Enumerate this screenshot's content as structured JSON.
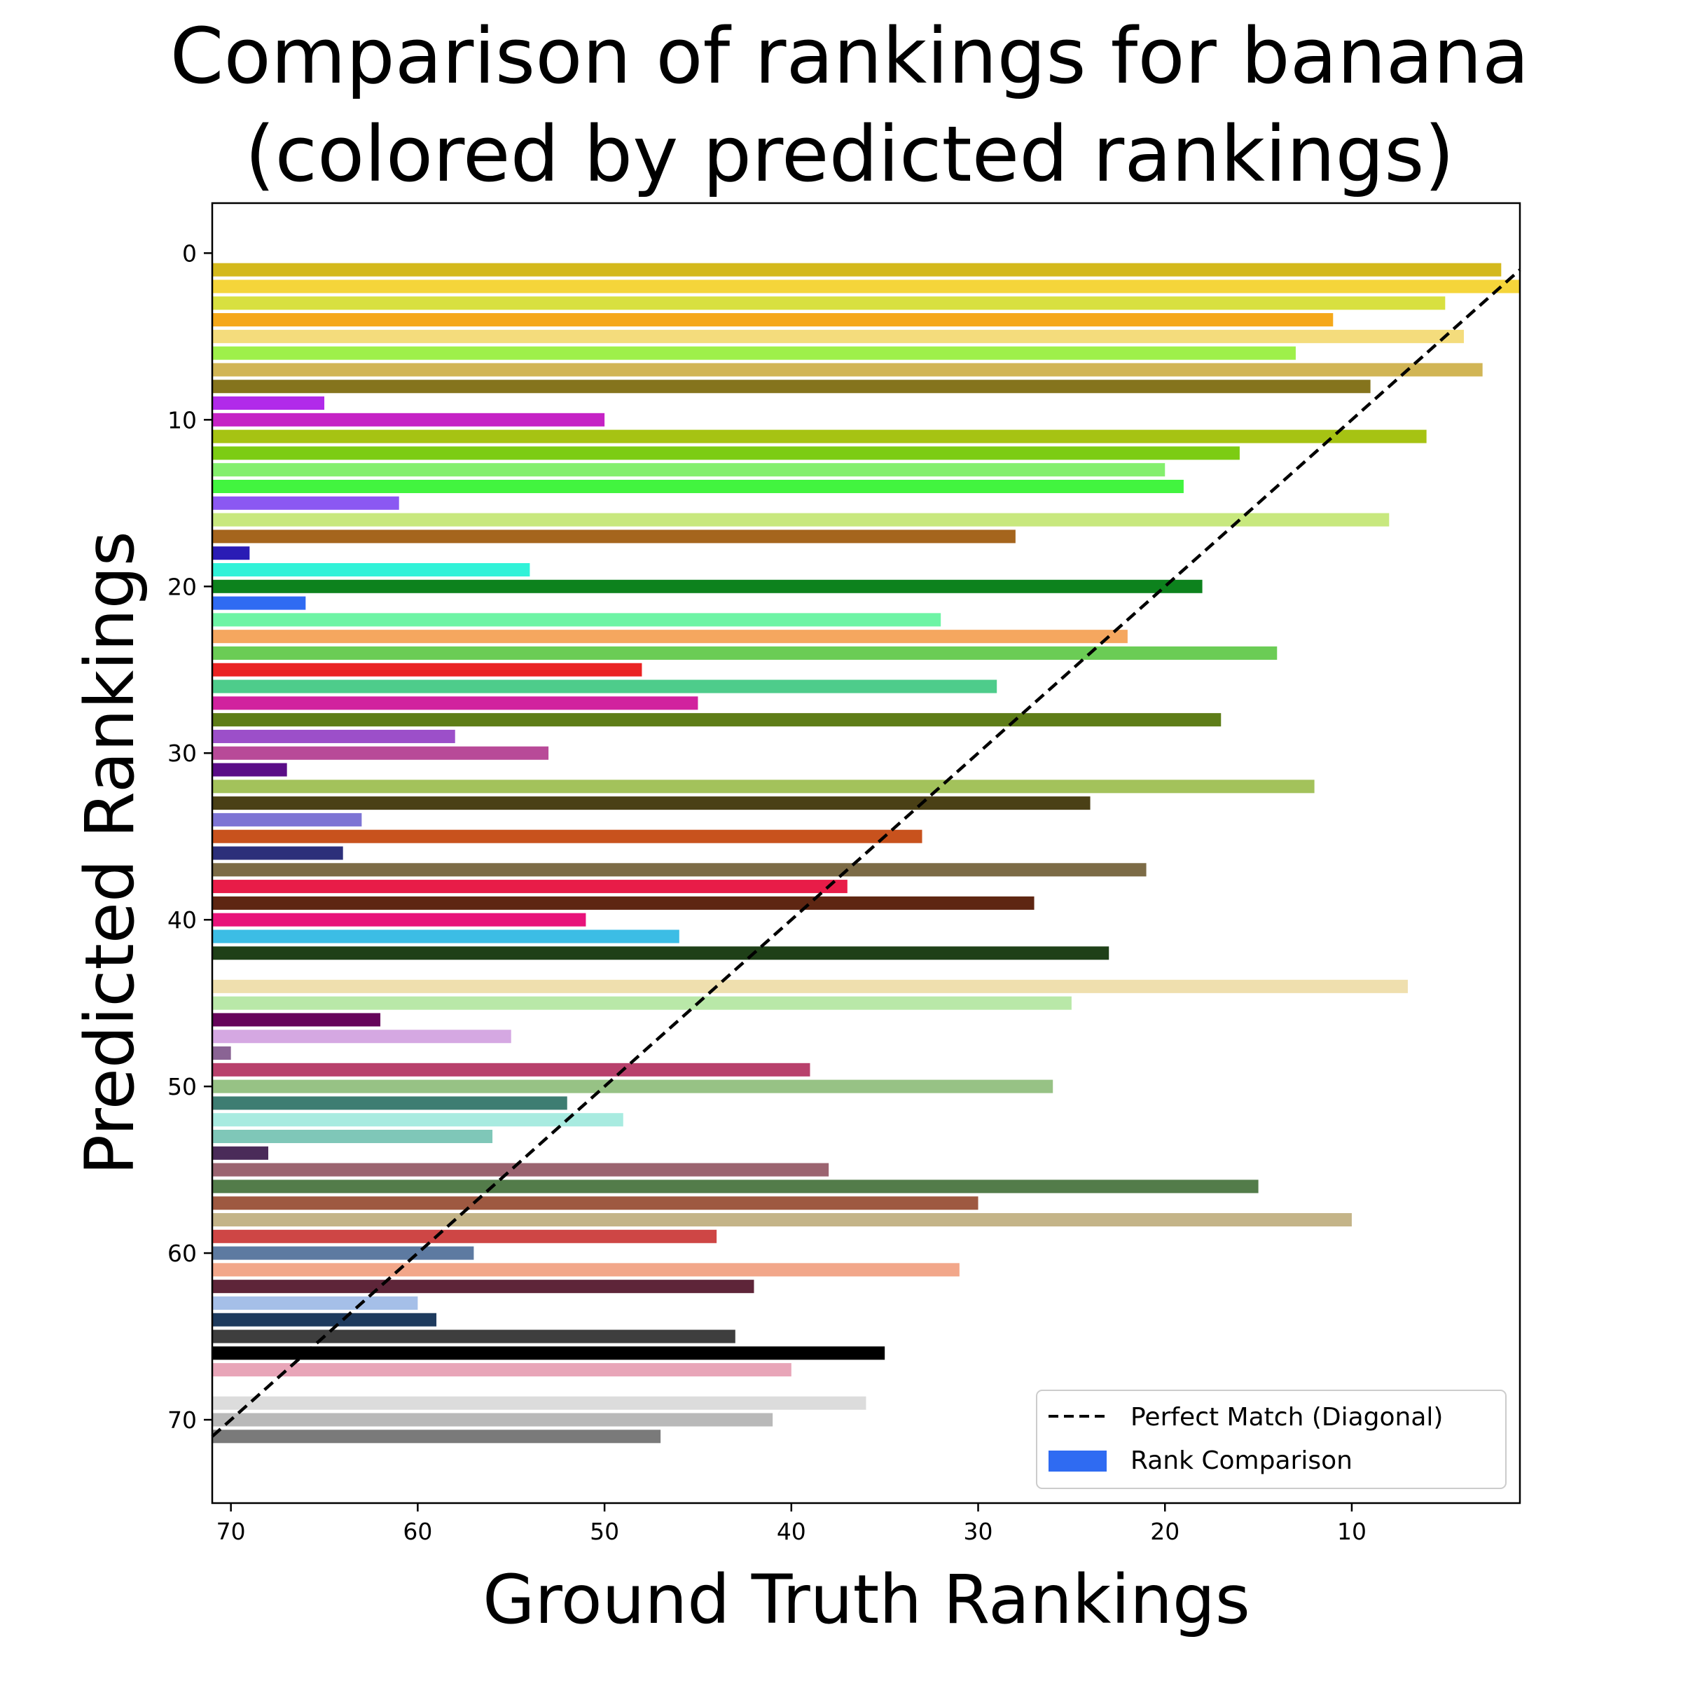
{
  "chart_data": {
    "type": "bar",
    "orientation": "horizontal",
    "title": [
      "Comparison of rankings for banana",
      "(colored by predicted rankings)"
    ],
    "xlabel": "Ground Truth Rankings",
    "ylabel": "Predicted Rankings",
    "xlim": [
      71,
      1
    ],
    "ylim": [
      75,
      -3
    ],
    "xticks": [
      70,
      60,
      50,
      40,
      30,
      20,
      10
    ],
    "yticks": [
      0,
      10,
      20,
      30,
      40,
      50,
      60,
      70
    ],
    "grid": false,
    "legend": {
      "placement": "lower-right",
      "entries": [
        {
          "label": "Perfect Match (Diagonal)",
          "style": "dashed-line",
          "color": "#000000"
        },
        {
          "label": "Rank Comparison",
          "style": "patch",
          "color": "#2f6bf2"
        }
      ]
    },
    "diagonal": {
      "from": [
        71,
        71
      ],
      "to": [
        1,
        1
      ]
    },
    "bars": [
      {
        "y": 1,
        "x": 2,
        "color": "#d4b91c"
      },
      {
        "y": 2,
        "x": 1,
        "color": "#f5d53a"
      },
      {
        "y": 3,
        "x": 5,
        "color": "#d8e040"
      },
      {
        "y": 4,
        "x": 11,
        "color": "#f5a81a"
      },
      {
        "y": 5,
        "x": 4,
        "color": "#f4dc7c"
      },
      {
        "y": 6,
        "x": 13,
        "color": "#9ef04a"
      },
      {
        "y": 7,
        "x": 3,
        "color": "#d1b555"
      },
      {
        "y": 8,
        "x": 9,
        "color": "#85741d"
      },
      {
        "y": 9,
        "x": 65,
        "color": "#b12aea"
      },
      {
        "y": 10,
        "x": 50,
        "color": "#c523c5"
      },
      {
        "y": 11,
        "x": 6,
        "color": "#a6c313"
      },
      {
        "y": 12,
        "x": 16,
        "color": "#7ccc13"
      },
      {
        "y": 13,
        "x": 20,
        "color": "#84ef6d"
      },
      {
        "y": 14,
        "x": 19,
        "color": "#42f43f"
      },
      {
        "y": 15,
        "x": 61,
        "color": "#8b58f2"
      },
      {
        "y": 16,
        "x": 8,
        "color": "#c8e87e"
      },
      {
        "y": 17,
        "x": 28,
        "color": "#a5651d"
      },
      {
        "y": 18,
        "x": 69,
        "color": "#2a1cb5"
      },
      {
        "y": 19,
        "x": 54,
        "color": "#31f2d8"
      },
      {
        "y": 20,
        "x": 18,
        "color": "#0d821d"
      },
      {
        "y": 21,
        "x": 66,
        "color": "#2f6bf2"
      },
      {
        "y": 22,
        "x": 32,
        "color": "#6ef4a5"
      },
      {
        "y": 23,
        "x": 22,
        "color": "#f5a75f"
      },
      {
        "y": 24,
        "x": 14,
        "color": "#6bcc55"
      },
      {
        "y": 25,
        "x": 48,
        "color": "#ea2323"
      },
      {
        "y": 26,
        "x": 29,
        "color": "#4ecc8b"
      },
      {
        "y": 27,
        "x": 45,
        "color": "#d1229e"
      },
      {
        "y": 28,
        "x": 17,
        "color": "#5e7d18"
      },
      {
        "y": 29,
        "x": 58,
        "color": "#9c4fc9"
      },
      {
        "y": 30,
        "x": 53,
        "color": "#b84a98"
      },
      {
        "y": 31,
        "x": 67,
        "color": "#5a0d87"
      },
      {
        "y": 32,
        "x": 12,
        "color": "#a3c25b"
      },
      {
        "y": 33,
        "x": 24,
        "color": "#4a4016"
      },
      {
        "y": 34,
        "x": 63,
        "color": "#7d74d4"
      },
      {
        "y": 35,
        "x": 33,
        "color": "#c8521d"
      },
      {
        "y": 36,
        "x": 64,
        "color": "#2c2f7a"
      },
      {
        "y": 37,
        "x": 21,
        "color": "#7c6b46"
      },
      {
        "y": 38,
        "x": 37,
        "color": "#e81c48"
      },
      {
        "y": 39,
        "x": 27,
        "color": "#5e2612"
      },
      {
        "y": 40,
        "x": 51,
        "color": "#e8137a"
      },
      {
        "y": 41,
        "x": 46,
        "color": "#3cbde5"
      },
      {
        "y": 42,
        "x": 23,
        "color": "#1f4018"
      },
      {
        "y": 44,
        "x": 7,
        "color": "#efdfae"
      },
      {
        "y": 45,
        "x": 25,
        "color": "#b9e8a8"
      },
      {
        "y": 46,
        "x": 62,
        "color": "#66045a"
      },
      {
        "y": 47,
        "x": 55,
        "color": "#d5a8e2"
      },
      {
        "y": 48,
        "x": 70,
        "color": "#8a6494"
      },
      {
        "y": 49,
        "x": 39,
        "color": "#b8416c"
      },
      {
        "y": 50,
        "x": 26,
        "color": "#97c285"
      },
      {
        "y": 51,
        "x": 52,
        "color": "#3e7d72"
      },
      {
        "y": 52,
        "x": 49,
        "color": "#a8ebe0"
      },
      {
        "y": 53,
        "x": 56,
        "color": "#7fc7b8"
      },
      {
        "y": 54,
        "x": 68,
        "color": "#4a2b59"
      },
      {
        "y": 55,
        "x": 38,
        "color": "#9b6470"
      },
      {
        "y": 56,
        "x": 15,
        "color": "#537c4a"
      },
      {
        "y": 57,
        "x": 30,
        "color": "#9e5941"
      },
      {
        "y": 58,
        "x": 10,
        "color": "#c4b488"
      },
      {
        "y": 59,
        "x": 44,
        "color": "#ce4645"
      },
      {
        "y": 60,
        "x": 57,
        "color": "#5d7aa1"
      },
      {
        "y": 61,
        "x": 31,
        "color": "#f2a78a"
      },
      {
        "y": 62,
        "x": 42,
        "color": "#5e2539"
      },
      {
        "y": 63,
        "x": 60,
        "color": "#a5bfe8"
      },
      {
        "y": 64,
        "x": 59,
        "color": "#1e3b5e"
      },
      {
        "y": 65,
        "x": 43,
        "color": "#3e3e3e"
      },
      {
        "y": 66,
        "x": 35,
        "color": "#000000"
      },
      {
        "y": 67,
        "x": 40,
        "color": "#e8a5b8"
      },
      {
        "y": 69,
        "x": 36,
        "color": "#dcdcdc"
      },
      {
        "y": 70,
        "x": 41,
        "color": "#b9b9b9"
      },
      {
        "y": 71,
        "x": 47,
        "color": "#7a7a7a"
      }
    ]
  }
}
